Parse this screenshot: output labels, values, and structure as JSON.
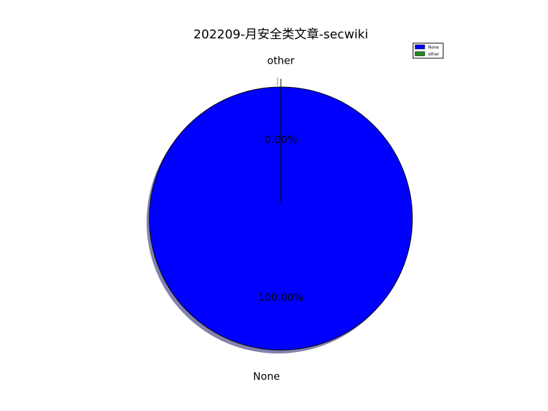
{
  "chart_data": {
    "type": "pie",
    "title": "202209-月安全类文章-secwiki",
    "slices": [
      {
        "label": "None",
        "value": 100.0,
        "pct_label": "100.00%",
        "color": "#0000ff"
      },
      {
        "label": "other",
        "value": 0.0,
        "pct_label": "0.00%",
        "color": "#228b22"
      }
    ],
    "legend": {
      "placement": "top-right",
      "entries": [
        "None",
        "other"
      ]
    },
    "shadow": true,
    "start_angle_deg": 90
  }
}
